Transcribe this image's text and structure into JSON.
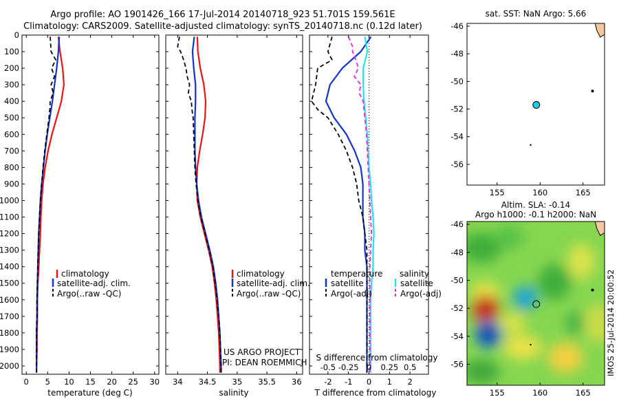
{
  "header": {
    "line1": "Argo profile: AO 1901426_166 17-Jul-2014 20140718_923 51.701S 159.561E",
    "line2": "Climatology: CARS2009. Satellite-adjusted climatology: synTS_20140718.nc (0.12d later)"
  },
  "colors": {
    "climatology": "#ee1111",
    "satellite": "#1133cc",
    "argo": "#000000",
    "sat_sal": "#22e6e6",
    "argo_sal": "#ee22ee"
  },
  "chart_data": [
    {
      "type": "line",
      "xlabel": "temperature (deg C)",
      "xlim": [
        -1,
        31
      ],
      "ylim": [
        2050,
        0
      ],
      "xticks": [
        0,
        5,
        10,
        15,
        20,
        25,
        30
      ],
      "yticks": [
        0,
        100,
        200,
        300,
        400,
        500,
        600,
        700,
        800,
        900,
        1000,
        1100,
        1200,
        1300,
        1400,
        1500,
        1600,
        1700,
        1800,
        1900,
        2000
      ],
      "legend": [
        "climatology",
        "satellite-adj. clim.",
        "Argo(..raw -QC)"
      ],
      "series": [
        {
          "name": "climatology",
          "style": "solid",
          "color": "climatology",
          "depth": [
            10,
            100,
            200,
            300,
            400,
            500,
            600,
            700,
            800,
            900,
            1000,
            1100,
            1200,
            1300,
            1400,
            1500,
            1600,
            1700,
            1800,
            1900,
            2000,
            2040
          ],
          "value": [
            7.5,
            7.9,
            8.5,
            8.8,
            8.2,
            7.1,
            6.0,
            5.1,
            4.4,
            3.9,
            3.6,
            3.4,
            3.3,
            3.1,
            2.9,
            2.7,
            2.6,
            2.6,
            2.5,
            2.5,
            2.4,
            2.4
          ]
        },
        {
          "name": "satellite-adj. clim.",
          "style": "solid",
          "color": "satellite",
          "depth": [
            10,
            100,
            200,
            300,
            400,
            500,
            600,
            700,
            800,
            900,
            1000,
            1100,
            1200,
            1300,
            1400,
            1500,
            1600,
            1700,
            1800,
            1900,
            2000,
            2040
          ],
          "value": [
            7.7,
            7.5,
            7.1,
            6.6,
            6.1,
            5.5,
            4.9,
            4.4,
            4.0,
            3.6,
            3.3,
            3.1,
            2.9,
            2.8,
            2.7,
            2.6,
            2.5,
            2.5,
            2.4,
            2.4,
            2.4,
            2.4
          ]
        },
        {
          "name": "Argo(..raw -QC)",
          "style": "dashed",
          "color": "argo",
          "depth": [
            10,
            100,
            150,
            200,
            250,
            300,
            350,
            400,
            450,
            500,
            600,
            700,
            800,
            900,
            1000,
            1100,
            1200,
            1300,
            1400,
            1500,
            1600,
            1700,
            1800,
            1900,
            2000,
            2040
          ],
          "value": [
            5.6,
            5.8,
            6.9,
            5.9,
            6.6,
            5.8,
            6.3,
            5.6,
            5.5,
            5.3,
            4.8,
            4.3,
            3.9,
            3.6,
            3.3,
            3.1,
            2.9,
            2.8,
            2.7,
            2.6,
            2.5,
            2.5,
            2.4,
            2.4,
            2.4,
            2.4
          ]
        }
      ]
    },
    {
      "type": "line",
      "xlabel": "salinity",
      "xlim": [
        33.8,
        36.1
      ],
      "ylim": [
        2050,
        0
      ],
      "xticks": [
        34,
        34.5,
        35,
        35.5,
        36
      ],
      "legend": [
        "climatology",
        "satellite-adj. clim.",
        "Argo(..raw -QC)"
      ],
      "series": [
        {
          "name": "climatology",
          "style": "solid",
          "color": "climatology",
          "depth": [
            10,
            100,
            200,
            300,
            400,
            500,
            600,
            700,
            800,
            900,
            1000,
            1100,
            1200,
            1300,
            1400,
            1500,
            1600,
            1700,
            1800,
            1900,
            2000,
            2040
          ],
          "value": [
            34.33,
            34.34,
            34.38,
            34.44,
            34.47,
            34.46,
            34.42,
            34.37,
            34.33,
            34.32,
            34.33,
            34.38,
            34.45,
            34.52,
            34.58,
            34.62,
            34.65,
            34.67,
            34.69,
            34.7,
            34.71,
            34.71
          ]
        },
        {
          "name": "satellite-adj. clim.",
          "style": "solid",
          "color": "satellite",
          "depth": [
            10,
            100,
            200,
            300,
            400,
            500,
            600,
            700,
            800,
            900,
            1000,
            1100,
            1200,
            1300,
            1400,
            1500,
            1600,
            1700,
            1800,
            1900,
            2000,
            2040
          ],
          "value": [
            34.28,
            34.25,
            34.27,
            34.3,
            34.3,
            34.29,
            34.29,
            34.29,
            34.3,
            34.32,
            34.35,
            34.4,
            34.47,
            34.54,
            34.6,
            34.64,
            34.67,
            34.69,
            34.71,
            34.72,
            34.73,
            34.73
          ]
        },
        {
          "name": "Argo(..raw -QC)",
          "style": "dashed",
          "color": "argo",
          "depth": [
            10,
            70,
            100,
            150,
            200,
            250,
            300,
            350,
            400,
            450,
            500,
            600,
            700,
            800,
            900,
            1000,
            1100,
            1200,
            1300,
            1400,
            1500,
            1600,
            1700,
            1800,
            1900,
            2000,
            2040
          ],
          "value": [
            34.03,
            34.0,
            34.05,
            34.1,
            34.14,
            34.16,
            34.2,
            34.18,
            34.23,
            34.24,
            34.26,
            34.27,
            34.28,
            34.29,
            34.31,
            34.34,
            34.39,
            34.46,
            34.53,
            34.59,
            34.63,
            34.66,
            34.69,
            34.71,
            34.72,
            34.73,
            34.73
          ]
        }
      ],
      "annotations": [
        "US ARGO PROJECT",
        "PI: DEAN ROEMMICH"
      ]
    },
    {
      "type": "line",
      "xlabel": "T difference from climatology",
      "xlabel_top": "S difference from climatology",
      "xlim": [
        -2.9,
        2.9
      ],
      "ylim": [
        2050,
        0
      ],
      "xticks": [
        -2,
        -1,
        0,
        1,
        2
      ],
      "xticks_top": [
        "-0.5",
        "-0.25",
        "0",
        "0.25",
        "0.5"
      ],
      "legend_title_left": "temperature",
      "legend_title_right": "salinity",
      "legend": [
        "satellite",
        "Argo(-adj)",
        "satellite",
        "Argo(-adj)"
      ],
      "series": [
        {
          "name": "satellite",
          "style": "solid",
          "color": "satellite",
          "depth": [
            10,
            100,
            200,
            300,
            400,
            500,
            600,
            700,
            800,
            900,
            1000,
            1100,
            1200,
            1300,
            1400,
            1500,
            1600,
            1700,
            1800,
            1900,
            2000,
            2040
          ],
          "value": [
            0.1,
            -0.4,
            -1.3,
            -1.9,
            -2.1,
            -1.7,
            -1.1,
            -0.7,
            -0.4,
            -0.3,
            -0.3,
            -0.3,
            -0.2,
            -0.2,
            -0.1,
            -0.1,
            -0.1,
            -0.1,
            -0.1,
            -0.1,
            -0.1,
            -0.1
          ]
        },
        {
          "name": "Argo(-adj)",
          "style": "dashed",
          "color": "argo",
          "depth": [
            10,
            100,
            150,
            200,
            300,
            400,
            450,
            500,
            600,
            700,
            800,
            900,
            1000,
            1100,
            1200,
            1300,
            1400,
            1500,
            1600,
            1700,
            1800,
            1900,
            2000,
            2040
          ],
          "value": [
            -1.8,
            -2.0,
            -1.8,
            -2.5,
            -2.6,
            -2.8,
            -2.5,
            -2.0,
            -1.5,
            -1.1,
            -0.8,
            -0.6,
            -0.5,
            -0.3,
            -0.2,
            -0.1,
            -0.1,
            -0.1,
            -0.1,
            -0.1,
            -0.1,
            -0.1,
            -0.1,
            -0.1
          ]
        },
        {
          "name": "satellite",
          "style": "solid",
          "color": "sat_sal",
          "depth": [
            10,
            100,
            200,
            300,
            400,
            500,
            600,
            700,
            800,
            900,
            1000,
            1100,
            1200,
            1300,
            1400,
            1500,
            1600,
            1700,
            1800,
            1900,
            2000,
            2040
          ],
          "value": [
            -0.05,
            -0.02,
            -0.07,
            -0.07,
            -0.06,
            -0.04,
            -0.02,
            -0.01,
            0.0,
            0.02,
            0.03,
            0.05,
            0.06,
            0.05,
            0.05,
            0.03,
            0.02,
            0.02,
            0.02,
            0.02,
            0.02,
            0.02
          ]
        },
        {
          "name": "Argo(-adj)",
          "style": "dashed",
          "color": "argo_sal",
          "depth": [
            10,
            70,
            100,
            150,
            200,
            250,
            300,
            350,
            400,
            500,
            600,
            700,
            800,
            900,
            1000,
            1100,
            1200,
            1300,
            1400,
            1500,
            1600,
            1700,
            1800,
            1900,
            2000,
            2040
          ],
          "value": [
            -0.25,
            -0.2,
            -0.2,
            -0.16,
            -0.13,
            -0.18,
            -0.1,
            -0.12,
            -0.07,
            -0.05,
            -0.03,
            -0.02,
            -0.01,
            0.0,
            0.01,
            0.02,
            0.03,
            0.02,
            0.01,
            0.01,
            0.01,
            0.01,
            0.01,
            0.01,
            0.01,
            0.01
          ]
        }
      ]
    },
    {
      "type": "scatter",
      "title": "sat. SST: NaN Argo: 5.66",
      "xlim": [
        151.5,
        167.5
      ],
      "ylim": [
        -57.5,
        -45.8
      ],
      "xticks": [
        155,
        160,
        165
      ],
      "yticks": [
        -46,
        -48,
        -50,
        -52,
        -54,
        -56
      ],
      "profile": {
        "lon": 159.561,
        "lat": -51.701
      }
    },
    {
      "type": "heatmap",
      "title": "Altim. SLA: -0.14",
      "subtitle": "Argo h1000: -0.1 h2000: NaN",
      "xlim": [
        151.5,
        167.5
      ],
      "ylim": [
        -57.5,
        -45.8
      ],
      "xticks": [
        155,
        160,
        165
      ],
      "yticks": [
        -46,
        -48,
        -50,
        -52,
        -54,
        -56
      ],
      "profile": {
        "lon": 159.561,
        "lat": -51.701
      }
    }
  ],
  "credit": "IMOS 25-Jul-2014 20:00:52"
}
